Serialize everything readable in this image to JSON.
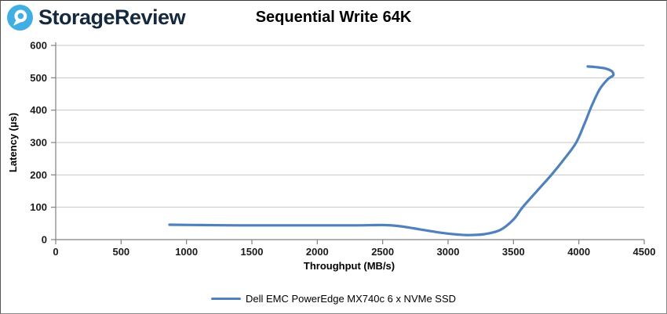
{
  "header": {
    "brand": "StorageReview",
    "logo_blue": "#41aee4",
    "wordmark_color": "#15293e"
  },
  "title": "Sequential Write 64K",
  "chart_data": {
    "type": "line",
    "title": "Sequential Write 64K",
    "xlabel": "Throughput (MB/s)",
    "ylabel": "Latency (µs)",
    "xlim": [
      0,
      4500
    ],
    "ylim": [
      0,
      600
    ],
    "x_ticks": [
      0,
      500,
      1000,
      1500,
      2000,
      2500,
      3000,
      3500,
      4000,
      4500
    ],
    "y_ticks": [
      0,
      100,
      200,
      300,
      400,
      500,
      600
    ],
    "grid": "horizontal-only",
    "legend_position": "bottom-center",
    "gridline_color": "#c6c6c6",
    "axis_color": "#808080",
    "series": [
      {
        "name": "Dell EMC PowerEdge MX740c 6 x NVMe SSD",
        "color": "#4f81bd",
        "points": [
          [
            870,
            46
          ],
          [
            1100,
            45
          ],
          [
            1400,
            44
          ],
          [
            1700,
            44
          ],
          [
            2000,
            44
          ],
          [
            2300,
            44
          ],
          [
            2500,
            45
          ],
          [
            2620,
            42
          ],
          [
            2780,
            32
          ],
          [
            2950,
            21
          ],
          [
            3080,
            15.5
          ],
          [
            3160,
            14
          ],
          [
            3280,
            17
          ],
          [
            3400,
            30
          ],
          [
            3500,
            62
          ],
          [
            3570,
            100
          ],
          [
            3680,
            150
          ],
          [
            3790,
            200
          ],
          [
            3890,
            250
          ],
          [
            3980,
            300
          ],
          [
            4045,
            360
          ],
          [
            4100,
            415
          ],
          [
            4160,
            465
          ],
          [
            4220,
            495
          ],
          [
            4255,
            505
          ],
          [
            4265,
            510
          ],
          [
            4250,
            521
          ],
          [
            4200,
            529
          ],
          [
            4130,
            533
          ],
          [
            4068,
            535
          ]
        ]
      }
    ]
  }
}
